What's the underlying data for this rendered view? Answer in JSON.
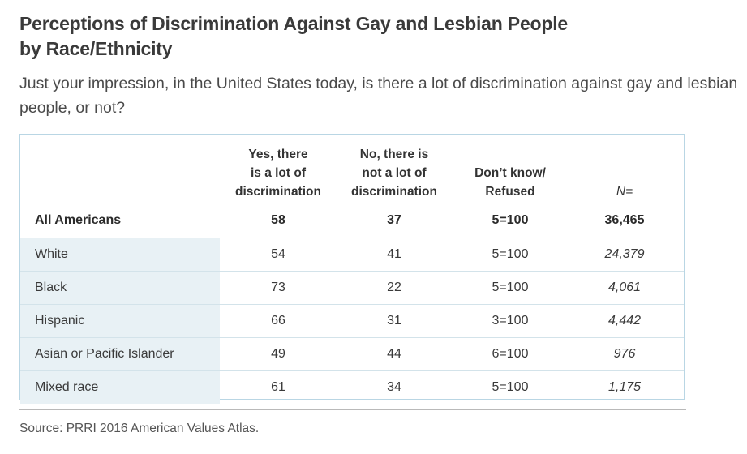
{
  "header": {
    "title_line1": "Perceptions of Discrimination Against Gay and Lesbian People",
    "title_line2": "by Race/Ethnicity",
    "subtitle": "Just your impression, in the United States today, is there a lot of discrimination against gay and lesbian people, or not?"
  },
  "chart_data": {
    "type": "table",
    "columns": [
      "Yes, there\nis a lot of\ndiscrimination",
      "No, there is\nnot a lot of\ndiscrimination",
      "Don’t know/\nRefused",
      "N="
    ],
    "rows": [
      {
        "label": "All Americans",
        "yes": "58",
        "no": "37",
        "dk": "5=100",
        "n": "36,465"
      },
      {
        "label": "White",
        "yes": "54",
        "no": "41",
        "dk": "5=100",
        "n": "24,379"
      },
      {
        "label": "Black",
        "yes": "73",
        "no": "22",
        "dk": "5=100",
        "n": "4,061"
      },
      {
        "label": "Hispanic",
        "yes": "66",
        "no": "31",
        "dk": "3=100",
        "n": "4,442"
      },
      {
        "label": "Asian or Pacific Islander",
        "yes": "49",
        "no": "44",
        "dk": "6=100",
        "n": "976"
      },
      {
        "label": "Mixed race",
        "yes": "61",
        "no": "34",
        "dk": "5=100",
        "n": "1,175"
      }
    ]
  },
  "footer": {
    "source": "Source: PRRI 2016 American Values Atlas."
  },
  "colors": {
    "label_shade": "#e8f1f5",
    "border": "#b9d6e4"
  }
}
